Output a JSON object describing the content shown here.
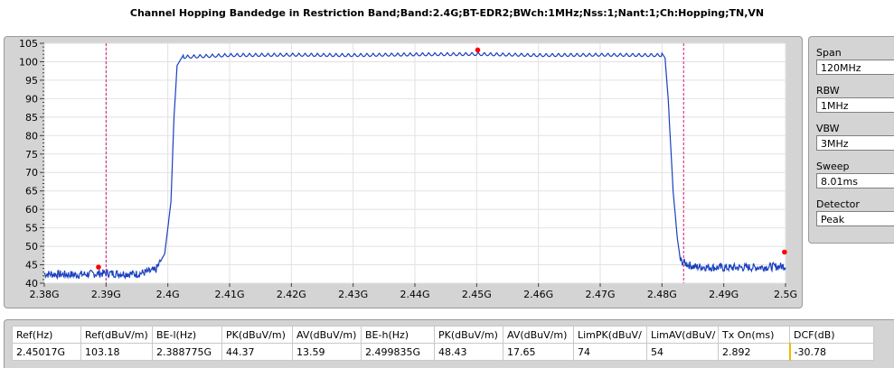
{
  "title": "Channel Hopping Bandedge in Restriction Band;Band:2.4G;BT-EDR2;BWch:1MHz;Nss:1;Nant:1;Ch:Hopping;TN,VN",
  "settings": [
    {
      "label": "Span",
      "value": "120MHz"
    },
    {
      "label": "RBW",
      "value": "1MHz"
    },
    {
      "label": "VBW",
      "value": "3MHz"
    },
    {
      "label": "Sweep",
      "value": "8.01ms"
    },
    {
      "label": "Detector",
      "value": "Peak"
    }
  ],
  "chart_data": {
    "type": "line",
    "title": "Channel Hopping Bandedge in Restriction Band;Band:2.4G;BT-EDR2;BWch:1MHz;Nss:1;Nant:1;Ch:Hopping;TN,VN",
    "xlabel": "",
    "ylabel": "",
    "xlim": [
      2.38,
      2.5
    ],
    "ylim": [
      40,
      105
    ],
    "x_ticks": [
      "2.38G",
      "2.39G",
      "2.4G",
      "2.41G",
      "2.42G",
      "2.43G",
      "2.44G",
      "2.45G",
      "2.46G",
      "2.47G",
      "2.48G",
      "2.49G",
      "2.5G"
    ],
    "x_tick_values": [
      2.38,
      2.39,
      2.4,
      2.41,
      2.42,
      2.43,
      2.44,
      2.45,
      2.46,
      2.47,
      2.48,
      2.49,
      2.5
    ],
    "y_ticks": [
      40,
      45,
      50,
      55,
      60,
      65,
      70,
      75,
      80,
      85,
      90,
      95,
      100,
      105
    ],
    "grid": true,
    "series": [
      {
        "color": "#1a40c0",
        "x": [
          2.38,
          2.385,
          2.39,
          2.395,
          2.398,
          2.3995,
          2.4005,
          2.401,
          2.4015,
          2.4025,
          2.41,
          2.42,
          2.43,
          2.44,
          2.45,
          2.46,
          2.47,
          2.48,
          2.4805,
          2.481,
          2.4818,
          2.4825,
          2.483,
          2.485,
          2.49,
          2.495,
          2.5
        ],
        "y": [
          42.5,
          42.3,
          42.7,
          42.5,
          43.5,
          48,
          62,
          85,
          99,
          101.8,
          102.3,
          102.4,
          102.3,
          102.5,
          102.6,
          102.3,
          102.4,
          102.3,
          101,
          90,
          65,
          52,
          46,
          44.5,
          44.2,
          44.3,
          44.6
        ]
      }
    ],
    "limit_lines": {
      "color": "#d4147a",
      "x": [
        2.39,
        2.4835
      ]
    },
    "markers": {
      "color": "#ff0000",
      "points": [
        {
          "x": 2.388775,
          "y": 44.37
        },
        {
          "x": 2.45017,
          "y": 103.18
        },
        {
          "x": 2.499835,
          "y": 48.43
        }
      ]
    }
  },
  "table": {
    "headers": [
      "Ref(Hz)",
      "Ref(dBuV/m)",
      "BE-l(Hz)",
      "PK(dBuV/m)",
      "AV(dBuV/m)",
      "BE-h(Hz)",
      "PK(dBuV/m)",
      "AV(dBuV/m)",
      "LimPK(dBuV/",
      "LimAV(dBuV/",
      "Tx On(ms)",
      "DCF(dB)"
    ],
    "rows": [
      [
        "2.45017G",
        "103.18",
        "2.388775G",
        "44.37",
        "13.59",
        "2.499835G",
        "48.43",
        "17.65",
        "74",
        "54",
        "2.892",
        "-30.78"
      ]
    ]
  }
}
